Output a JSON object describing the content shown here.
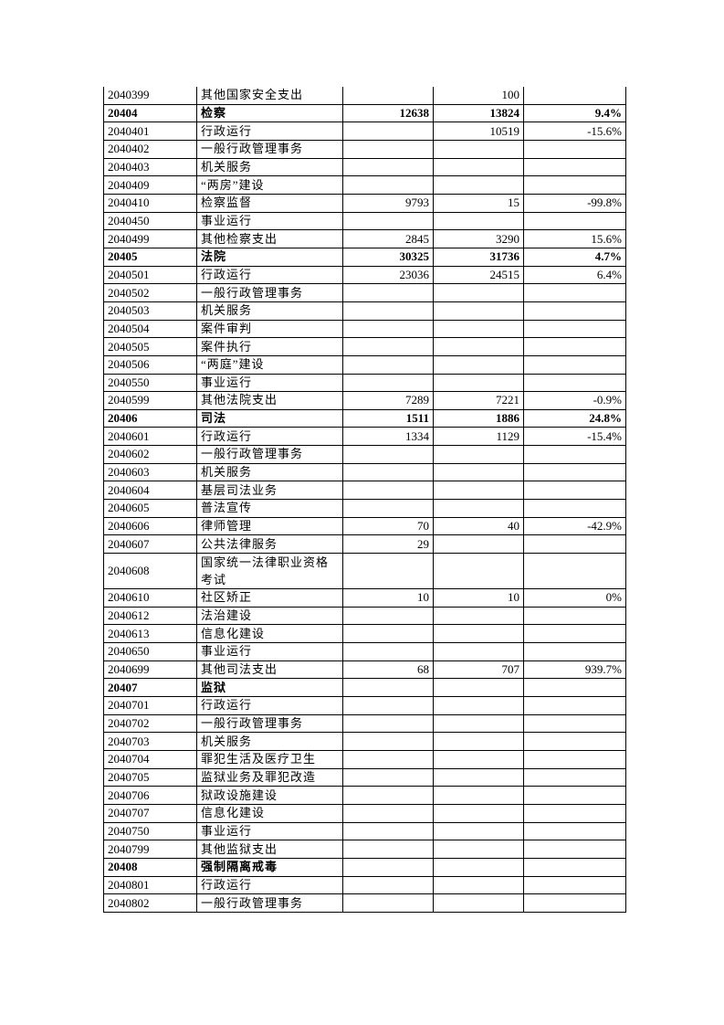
{
  "rows": [
    {
      "code": "2040399",
      "name": "其他国家安全支出",
      "a": "",
      "b": "100",
      "c": ""
    },
    {
      "code": "20404",
      "name": "检察",
      "a": "12638",
      "b": "13824",
      "c": "9.4%",
      "bold": true
    },
    {
      "code": "2040401",
      "name": "行政运行",
      "a": "",
      "b": "10519",
      "c": "-15.6%"
    },
    {
      "code": "2040402",
      "name": "一般行政管理事务",
      "a": "",
      "b": "",
      "c": ""
    },
    {
      "code": "2040403",
      "name": "机关服务",
      "a": "",
      "b": "",
      "c": ""
    },
    {
      "code": "2040409",
      "name": "“两房”建设",
      "a": "",
      "b": "",
      "c": ""
    },
    {
      "code": "2040410",
      "name": "检察监督",
      "a": "9793",
      "b": "15",
      "c": "-99.8%"
    },
    {
      "code": "2040450",
      "name": "事业运行",
      "a": "",
      "b": "",
      "c": ""
    },
    {
      "code": "2040499",
      "name": "其他检察支出",
      "a": "2845",
      "b": "3290",
      "c": "15.6%"
    },
    {
      "code": "20405",
      "name": "法院",
      "a": "30325",
      "b": "31736",
      "c": "4.7%",
      "bold": true
    },
    {
      "code": "2040501",
      "name": "行政运行",
      "a": "23036",
      "b": "24515",
      "c": "6.4%"
    },
    {
      "code": "2040502",
      "name": "一般行政管理事务",
      "a": "",
      "b": "",
      "c": ""
    },
    {
      "code": "2040503",
      "name": "机关服务",
      "a": "",
      "b": "",
      "c": ""
    },
    {
      "code": "2040504",
      "name": "案件审判",
      "a": "",
      "b": "",
      "c": ""
    },
    {
      "code": "2040505",
      "name": "案件执行",
      "a": "",
      "b": "",
      "c": ""
    },
    {
      "code": "2040506",
      "name": "“两庭”建设",
      "a": "",
      "b": "",
      "c": ""
    },
    {
      "code": "2040550",
      "name": "事业运行",
      "a": "",
      "b": "",
      "c": ""
    },
    {
      "code": "2040599",
      "name": "其他法院支出",
      "a": "7289",
      "b": "7221",
      "c": "-0.9%"
    },
    {
      "code": "20406",
      "name": "司法",
      "a": "1511",
      "b": "1886",
      "c": "24.8%",
      "bold": true
    },
    {
      "code": "2040601",
      "name": "行政运行",
      "a": "1334",
      "b": "1129",
      "c": "-15.4%"
    },
    {
      "code": "2040602",
      "name": "一般行政管理事务",
      "a": "",
      "b": "",
      "c": ""
    },
    {
      "code": "2040603",
      "name": "机关服务",
      "a": "",
      "b": "",
      "c": ""
    },
    {
      "code": "2040604",
      "name": "基层司法业务",
      "a": "",
      "b": "",
      "c": ""
    },
    {
      "code": "2040605",
      "name": "普法宣传",
      "a": "",
      "b": "",
      "c": ""
    },
    {
      "code": "2040606",
      "name": "律师管理",
      "a": "70",
      "b": "40",
      "c": "-42.9%"
    },
    {
      "code": "2040607",
      "name": "公共法律服务",
      "a": "29",
      "b": "",
      "c": ""
    },
    {
      "code": "2040608",
      "name": "国家统一法律职业资格考试",
      "a": "",
      "b": "",
      "c": "",
      "tall": true
    },
    {
      "code": "2040610",
      "name": "社区矫正",
      "a": "10",
      "b": "10",
      "c": "0%"
    },
    {
      "code": "2040612",
      "name": "法治建设",
      "a": "",
      "b": "",
      "c": ""
    },
    {
      "code": "2040613",
      "name": "信息化建设",
      "a": "",
      "b": "",
      "c": ""
    },
    {
      "code": "2040650",
      "name": "事业运行",
      "a": "",
      "b": "",
      "c": ""
    },
    {
      "code": "2040699",
      "name": "其他司法支出",
      "a": "68",
      "b": "707",
      "c": "939.7%"
    },
    {
      "code": "20407",
      "name": "监狱",
      "a": "",
      "b": "",
      "c": "",
      "bold": true
    },
    {
      "code": "2040701",
      "name": "行政运行",
      "a": "",
      "b": "",
      "c": ""
    },
    {
      "code": "2040702",
      "name": "一般行政管理事务",
      "a": "",
      "b": "",
      "c": ""
    },
    {
      "code": "2040703",
      "name": "机关服务",
      "a": "",
      "b": "",
      "c": ""
    },
    {
      "code": "2040704",
      "name": "罪犯生活及医疗卫生",
      "a": "",
      "b": "",
      "c": ""
    },
    {
      "code": "2040705",
      "name": "监狱业务及罪犯改造",
      "a": "",
      "b": "",
      "c": ""
    },
    {
      "code": "2040706",
      "name": "狱政设施建设",
      "a": "",
      "b": "",
      "c": ""
    },
    {
      "code": "2040707",
      "name": "信息化建设",
      "a": "",
      "b": "",
      "c": ""
    },
    {
      "code": "2040750",
      "name": "事业运行",
      "a": "",
      "b": "",
      "c": ""
    },
    {
      "code": "2040799",
      "name": "其他监狱支出",
      "a": "",
      "b": "",
      "c": ""
    },
    {
      "code": "20408",
      "name": "强制隔离戒毒",
      "a": "",
      "b": "",
      "c": "",
      "bold": true
    },
    {
      "code": "2040801",
      "name": "行政运行",
      "a": "",
      "b": "",
      "c": ""
    },
    {
      "code": "2040802",
      "name": "一般行政管理事务",
      "a": "",
      "b": "",
      "c": ""
    }
  ]
}
